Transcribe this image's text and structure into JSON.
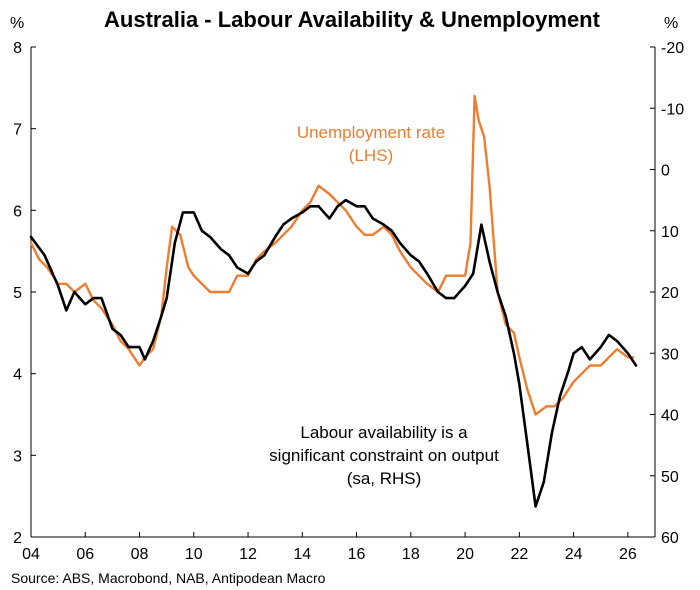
{
  "chart_data": {
    "type": "line",
    "title": "Australia - Labour Availability & Unemployment",
    "left_axis": {
      "unit": "%",
      "range": [
        2,
        8
      ],
      "ticks": [
        "2",
        "3",
        "4",
        "5",
        "6",
        "7",
        "8"
      ]
    },
    "right_axis": {
      "unit": "%",
      "range": [
        60,
        -20
      ],
      "inverted": true,
      "ticks": [
        "-20",
        "-10",
        "0",
        "10",
        "20",
        "30",
        "40",
        "50",
        "60"
      ]
    },
    "x_axis": {
      "range": [
        2004,
        2027
      ],
      "ticks": [
        "04",
        "06",
        "08",
        "10",
        "12",
        "14",
        "16",
        "18",
        "20",
        "22",
        "24",
        "26"
      ]
    },
    "grid": false,
    "series": [
      {
        "name": "Unemployment rate (LHS)",
        "axis": "left",
        "color": "#ED7D31",
        "x": [
          2004.0,
          2004.3,
          2004.6,
          2005.0,
          2005.3,
          2005.6,
          2006.0,
          2006.3,
          2006.6,
          2007.0,
          2007.3,
          2007.6,
          2008.0,
          2008.2,
          2008.5,
          2008.8,
          2009.0,
          2009.2,
          2009.5,
          2009.8,
          2010.0,
          2010.3,
          2010.6,
          2011.0,
          2011.3,
          2011.6,
          2012.0,
          2012.3,
          2012.6,
          2013.0,
          2013.3,
          2013.6,
          2014.0,
          2014.3,
          2014.6,
          2015.0,
          2015.3,
          2015.6,
          2016.0,
          2016.3,
          2016.6,
          2017.0,
          2017.3,
          2017.6,
          2018.0,
          2018.3,
          2018.6,
          2019.0,
          2019.3,
          2019.6,
          2020.0,
          2020.2,
          2020.35,
          2020.5,
          2020.7,
          2020.9,
          2021.2,
          2021.5,
          2021.8,
          2022.0,
          2022.3,
          2022.6,
          2023.0,
          2023.3,
          2023.6,
          2024.0,
          2024.3,
          2024.6,
          2025.0,
          2025.3,
          2025.6,
          2026.0,
          2026.2
        ],
        "y": [
          5.6,
          5.4,
          5.3,
          5.1,
          5.1,
          5.0,
          5.1,
          4.9,
          4.8,
          4.6,
          4.4,
          4.3,
          4.1,
          4.2,
          4.3,
          4.7,
          5.3,
          5.8,
          5.7,
          5.3,
          5.2,
          5.1,
          5.0,
          5.0,
          5.0,
          5.2,
          5.2,
          5.4,
          5.5,
          5.6,
          5.7,
          5.8,
          6.0,
          6.1,
          6.3,
          6.2,
          6.1,
          6.0,
          5.8,
          5.7,
          5.7,
          5.8,
          5.7,
          5.5,
          5.3,
          5.2,
          5.1,
          5.0,
          5.2,
          5.2,
          5.2,
          5.6,
          7.4,
          7.1,
          6.9,
          6.3,
          5.0,
          4.6,
          4.5,
          4.2,
          3.8,
          3.5,
          3.6,
          3.6,
          3.7,
          3.9,
          4.0,
          4.1,
          4.1,
          4.2,
          4.3,
          4.2,
          4.2
        ]
      },
      {
        "name": "Labour availability is a significant constraint on output (sa, RHS)",
        "axis": "right",
        "color": "#000000",
        "x": [
          2004.0,
          2004.5,
          2005.0,
          2005.3,
          2005.6,
          2006.0,
          2006.3,
          2006.6,
          2007.0,
          2007.3,
          2007.6,
          2008.0,
          2008.2,
          2008.5,
          2008.8,
          2009.0,
          2009.3,
          2009.6,
          2010.0,
          2010.3,
          2010.6,
          2011.0,
          2011.3,
          2011.6,
          2012.0,
          2012.3,
          2012.6,
          2013.0,
          2013.3,
          2013.6,
          2014.0,
          2014.3,
          2014.6,
          2015.0,
          2015.3,
          2015.6,
          2016.0,
          2016.3,
          2016.6,
          2017.0,
          2017.3,
          2017.6,
          2018.0,
          2018.3,
          2018.6,
          2019.0,
          2019.3,
          2019.6,
          2020.0,
          2020.3,
          2020.6,
          2020.9,
          2021.2,
          2021.5,
          2021.8,
          2022.0,
          2022.3,
          2022.6,
          2022.9,
          2023.2,
          2023.5,
          2023.8,
          2024.0,
          2024.3,
          2024.6,
          2025.0,
          2025.3,
          2025.6,
          2026.0,
          2026.3
        ],
        "y": [
          11,
          14,
          19,
          23,
          20,
          22,
          21,
          21,
          26,
          27,
          29,
          29,
          31,
          28,
          24,
          21,
          12,
          7,
          7,
          10,
          11,
          13,
          14,
          16,
          17,
          15,
          14,
          11,
          9,
          8,
          7,
          6,
          6,
          8,
          6,
          5,
          6,
          6,
          8,
          9,
          10,
          12,
          14,
          15,
          17,
          20,
          21,
          21,
          19,
          17,
          9,
          15,
          20,
          24,
          30,
          35,
          45,
          55,
          51,
          43,
          37,
          33,
          30,
          29,
          31,
          29,
          27,
          28,
          30,
          32
        ]
      }
    ],
    "annotations": [
      {
        "label": "unemployment",
        "lines": [
          "Unemployment rate",
          "(LHS)"
        ]
      },
      {
        "label": "labour",
        "lines": [
          "Labour availability is a",
          "significant constraint on output",
          "(sa, RHS)"
        ]
      }
    ],
    "source": "Source: ABS, Macrobond, NAB, Antipodean Macro"
  }
}
